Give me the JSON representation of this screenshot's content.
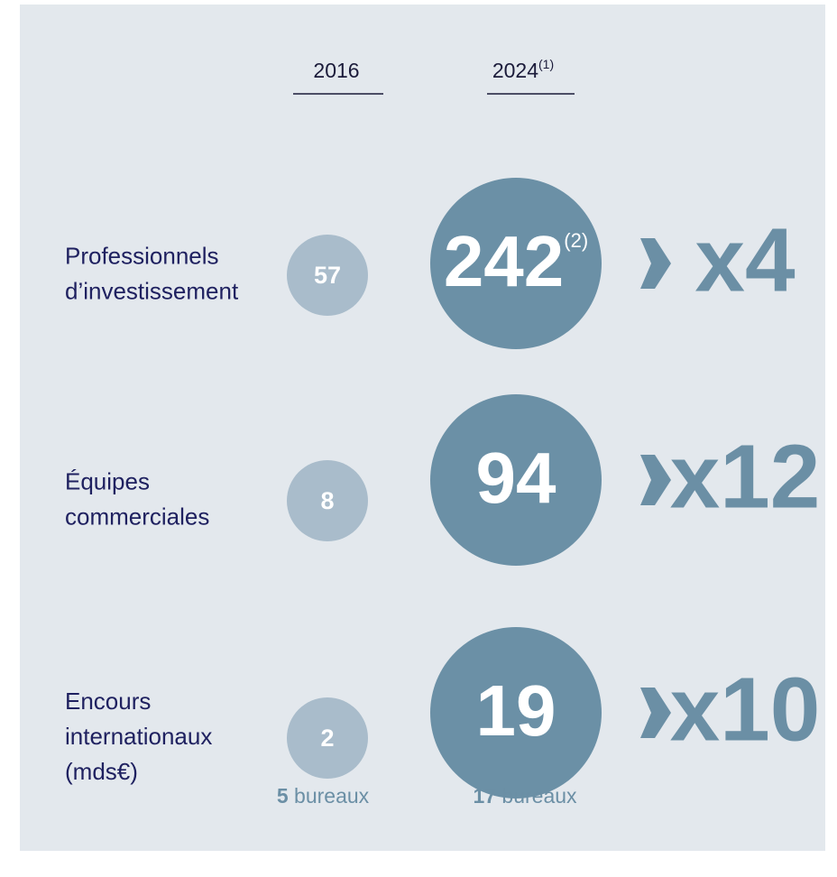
{
  "columns": [
    {
      "label": "2016"
    },
    {
      "label": "2024",
      "note": "(1)"
    }
  ],
  "rows": [
    {
      "label": [
        "Professionnels",
        "d’investissement"
      ],
      "value_2016": 57,
      "value_2024": 242,
      "value_2024_note": "(2)",
      "multiplier": "x4"
    },
    {
      "label": [
        "Équipes",
        "commerciales"
      ],
      "value_2016": 8,
      "value_2024": 94,
      "multiplier": "x12"
    },
    {
      "label": [
        "Encours",
        "internationaux",
        "(mds€)"
      ],
      "value_2016": 2,
      "value_2024": 19,
      "multiplier": "x10"
    }
  ],
  "offices": [
    {
      "count": 5,
      "label": "bureaux"
    },
    {
      "count": 17,
      "label": "bureaux"
    }
  ]
}
